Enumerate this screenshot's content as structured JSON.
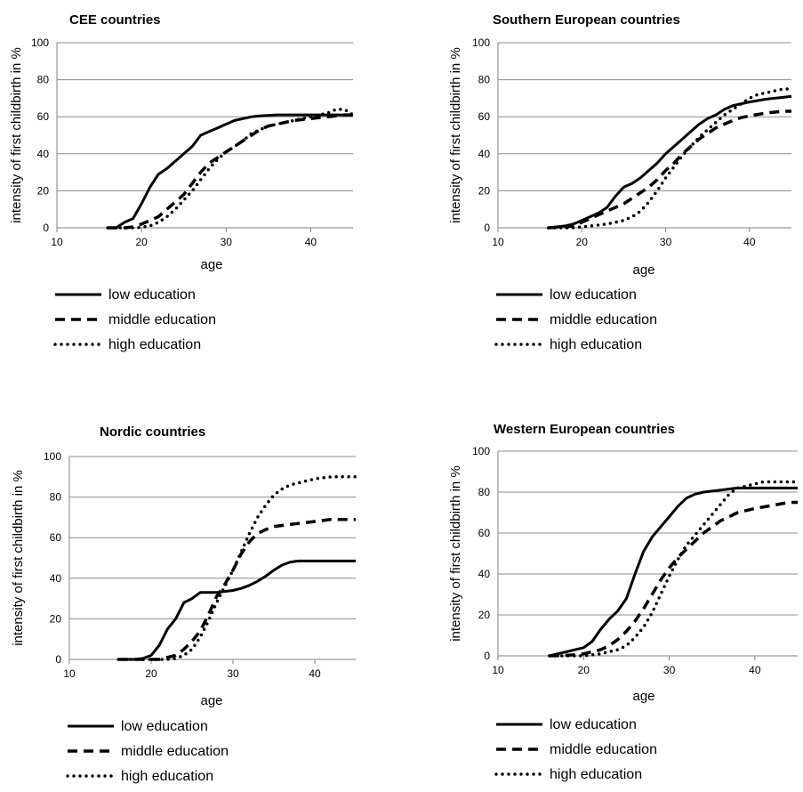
{
  "chart_data": [
    {
      "type": "line",
      "title": "CEE countries",
      "xlabel": "age",
      "ylabel": "intensity of first childbirth in %",
      "xlim": [
        10,
        45
      ],
      "ylim": [
        0,
        100
      ],
      "xticks": [
        "10",
        "20",
        "30",
        "40"
      ],
      "yticks": [
        "0",
        "20",
        "40",
        "60",
        "80",
        "100"
      ],
      "grid": "horizontal",
      "legend_position": "below",
      "series": [
        {
          "name": "low education",
          "style": "solid",
          "x": [
            16,
            17,
            18,
            19,
            20,
            21,
            22,
            23,
            24,
            25,
            26,
            27,
            28,
            29,
            30,
            31,
            32,
            33,
            34,
            36,
            38,
            40,
            42,
            44,
            45
          ],
          "y": [
            0,
            0,
            3,
            5,
            13,
            22,
            29,
            32,
            36,
            40,
            44,
            50,
            52,
            54,
            56,
            58,
            59,
            60,
            60.5,
            61,
            61,
            61,
            61,
            61,
            61
          ]
        },
        {
          "name": "middle education",
          "style": "dashed",
          "x": [
            16,
            18,
            19,
            20,
            21,
            22,
            23,
            24,
            25,
            26,
            27,
            28,
            29,
            30,
            31,
            32,
            33,
            34,
            35,
            36,
            38,
            40,
            42,
            44,
            45
          ],
          "y": [
            0,
            0,
            0.5,
            2,
            4,
            6,
            10,
            14,
            18,
            24,
            30,
            35,
            38,
            41,
            44,
            47,
            50,
            53,
            55,
            56,
            58,
            59,
            60,
            61,
            61
          ]
        },
        {
          "name": "high education",
          "style": "dotted",
          "x": [
            16,
            19,
            20,
            21,
            22,
            23,
            24,
            25,
            26,
            27,
            28,
            29,
            30,
            31,
            32,
            33,
            34,
            35,
            36,
            37,
            38,
            39,
            40,
            41,
            42,
            43,
            44,
            45
          ],
          "y": [
            0,
            0,
            0.3,
            1,
            3,
            6,
            10,
            15,
            20,
            26,
            32,
            37,
            41,
            44,
            47,
            51,
            53,
            55,
            56,
            57,
            58,
            59,
            60,
            61,
            62,
            64,
            64,
            61
          ]
        }
      ]
    },
    {
      "type": "line",
      "title": "Southern European countries",
      "xlabel": "age",
      "ylabel": "intensity of first childbirth in %",
      "xlim": [
        10,
        45
      ],
      "ylim": [
        0,
        100
      ],
      "xticks": [
        "10",
        "20",
        "30",
        "40"
      ],
      "yticks": [
        "0",
        "20",
        "40",
        "60",
        "80",
        "100"
      ],
      "grid": "horizontal",
      "legend_position": "below",
      "series": [
        {
          "name": "low education",
          "style": "solid",
          "x": [
            16,
            17,
            18,
            19,
            20,
            21,
            22,
            23,
            24,
            25,
            26,
            27,
            28,
            29,
            30,
            31,
            32,
            33,
            34,
            35,
            36,
            37,
            38,
            39,
            40,
            42,
            44,
            45
          ],
          "y": [
            0,
            0.5,
            1,
            2,
            4,
            6,
            8,
            11,
            17,
            22,
            24,
            27,
            31,
            35,
            40,
            44,
            48,
            52,
            56,
            59,
            61,
            64,
            66,
            67,
            68,
            69.5,
            70.5,
            71
          ]
        },
        {
          "name": "middle education",
          "style": "dashed",
          "x": [
            16,
            18,
            19,
            20,
            21,
            22,
            23,
            24,
            25,
            26,
            27,
            28,
            29,
            30,
            31,
            32,
            33,
            34,
            35,
            36,
            37,
            38,
            39,
            40,
            42,
            44,
            45
          ],
          "y": [
            0,
            0.5,
            1,
            3,
            5,
            7,
            9,
            11,
            13,
            16,
            19,
            22,
            26,
            31,
            35,
            40,
            44,
            48,
            51,
            54,
            56,
            58,
            59.5,
            60.5,
            62,
            63,
            63
          ]
        },
        {
          "name": "high education",
          "style": "dotted",
          "x": [
            16,
            19,
            20,
            21,
            22,
            23,
            24,
            25,
            26,
            27,
            28,
            29,
            30,
            31,
            32,
            33,
            34,
            35,
            36,
            37,
            38,
            39,
            40,
            41,
            42,
            43,
            44,
            45
          ],
          "y": [
            0,
            0,
            0.5,
            1,
            1.5,
            2,
            3,
            4,
            6,
            9,
            14,
            20,
            27,
            33,
            39,
            44,
            49,
            53,
            57,
            61,
            64,
            67,
            70,
            72,
            73,
            74,
            75,
            75
          ]
        }
      ]
    },
    {
      "type": "line",
      "title": "Nordic countries",
      "xlabel": "age",
      "ylabel": "intensity of first childbirth in %",
      "xlim": [
        10,
        45
      ],
      "ylim": [
        0,
        100
      ],
      "xticks": [
        "10",
        "20",
        "30",
        "40"
      ],
      "yticks": [
        "0",
        "20",
        "40",
        "60",
        "80",
        "100"
      ],
      "grid": "horizontal",
      "legend_position": "below",
      "series": [
        {
          "name": "low education",
          "style": "solid",
          "x": [
            16,
            18,
            19,
            20,
            21,
            22,
            23,
            24,
            25,
            26,
            27,
            28,
            29,
            30,
            31,
            32,
            33,
            34,
            35,
            36,
            37,
            38,
            40,
            42,
            44,
            45
          ],
          "y": [
            0,
            0,
            0.5,
            2,
            7,
            15,
            20,
            28,
            30,
            33,
            33,
            33,
            33.5,
            34,
            35,
            36.5,
            38.5,
            41,
            44,
            46.5,
            48,
            48.5,
            48.5,
            48.5,
            48.5,
            48.5
          ]
        },
        {
          "name": "middle education",
          "style": "dashed",
          "x": [
            16,
            21,
            22,
            23,
            24,
            25,
            26,
            27,
            28,
            29,
            30,
            31,
            32,
            33,
            34,
            35,
            36,
            38,
            40,
            42,
            44,
            45
          ],
          "y": [
            0,
            0,
            1,
            2,
            5,
            9,
            14,
            22,
            31,
            37,
            44,
            52,
            58,
            62,
            64,
            65.5,
            66,
            67,
            68,
            69,
            69,
            69
          ]
        },
        {
          "name": "high education",
          "style": "dotted",
          "x": [
            16,
            22,
            23,
            24,
            25,
            26,
            27,
            28,
            29,
            30,
            31,
            32,
            33,
            34,
            35,
            36,
            37,
            38,
            39,
            40,
            41,
            42,
            43,
            44,
            45
          ],
          "y": [
            0,
            0,
            0.5,
            2,
            5,
            11,
            19,
            28,
            36,
            44,
            53,
            62,
            70,
            76,
            81,
            84,
            86,
            87,
            88,
            89,
            89.5,
            90,
            90,
            90,
            90
          ]
        }
      ]
    },
    {
      "type": "line",
      "title": "Western European countries",
      "xlabel": "age",
      "ylabel": "intensity of first childbirth in %",
      "xlim": [
        10,
        45
      ],
      "ylim": [
        0,
        100
      ],
      "xticks": [
        "10",
        "20",
        "30",
        "40"
      ],
      "yticks": [
        "0",
        "20",
        "40",
        "60",
        "80",
        "100"
      ],
      "grid": "horizontal",
      "legend_position": "below",
      "series": [
        {
          "name": "low education",
          "style": "solid",
          "x": [
            16,
            17,
            18,
            19,
            20,
            21,
            22,
            23,
            24,
            25,
            26,
            27,
            28,
            29,
            30,
            31,
            32,
            33,
            34,
            35,
            36,
            37,
            38,
            40,
            42,
            44,
            45
          ],
          "y": [
            0,
            1,
            2,
            3,
            4,
            7,
            13,
            18,
            22,
            28,
            40,
            51,
            58,
            63,
            68,
            73,
            77,
            79,
            80,
            80.5,
            81,
            81.5,
            82,
            82,
            82,
            82,
            82
          ]
        },
        {
          "name": "middle education",
          "style": "dashed",
          "x": [
            16,
            19,
            20,
            21,
            22,
            23,
            24,
            25,
            26,
            27,
            28,
            29,
            30,
            31,
            32,
            33,
            34,
            35,
            36,
            37,
            38,
            39,
            40,
            42,
            44,
            45
          ],
          "y": [
            0,
            0.5,
            1,
            2,
            3,
            5,
            8,
            12,
            17,
            23,
            30,
            37,
            43,
            48,
            52,
            56,
            60,
            63,
            66,
            68,
            70,
            71,
            72,
            73.5,
            75,
            75
          ]
        },
        {
          "name": "high education",
          "style": "dotted",
          "x": [
            16,
            20,
            21,
            22,
            23,
            24,
            25,
            26,
            27,
            28,
            29,
            30,
            31,
            32,
            33,
            34,
            35,
            36,
            37,
            38,
            39,
            40,
            41,
            42,
            43,
            44,
            45
          ],
          "y": [
            0,
            0,
            0.5,
            1,
            2,
            3,
            5,
            9,
            14,
            21,
            30,
            39,
            47,
            54,
            59,
            64,
            69,
            74,
            79,
            82,
            83,
            84,
            85,
            85,
            85,
            85,
            85
          ]
        }
      ]
    }
  ]
}
